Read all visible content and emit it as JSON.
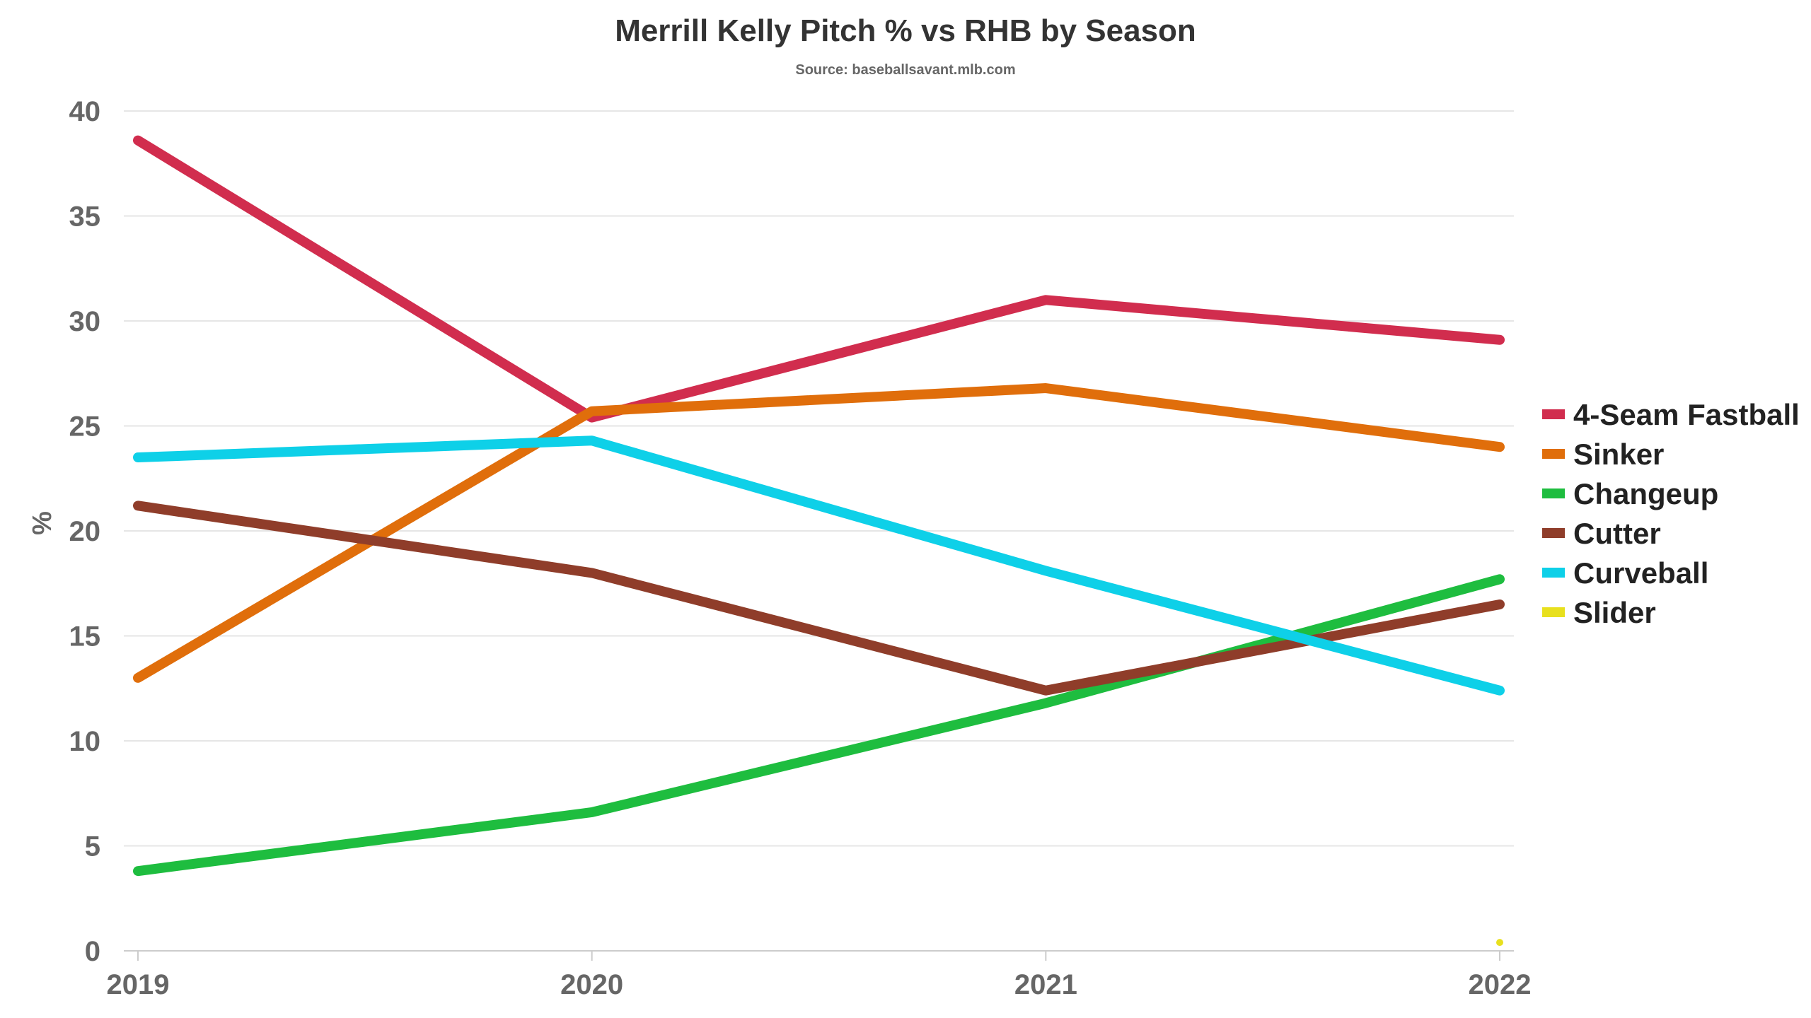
{
  "chart_data": {
    "type": "line",
    "title": "Merrill Kelly Pitch % vs RHB by Season",
    "subtitle": "Source: baseballsavant.mlb.com",
    "xlabel": "",
    "ylabel": "%",
    "categories": [
      "2019",
      "2020",
      "2021",
      "2022"
    ],
    "ylim": [
      0,
      40
    ],
    "yticks": [
      0,
      5,
      10,
      15,
      20,
      25,
      30,
      35,
      40
    ],
    "grid": true,
    "legend_position": "right",
    "series": [
      {
        "name": "4-Seam Fastball",
        "color": "#d12d4e",
        "values": [
          38.6,
          25.4,
          31.0,
          29.1
        ]
      },
      {
        "name": "Sinker",
        "color": "#e06e0b",
        "values": [
          13.0,
          25.7,
          26.8,
          24.0
        ]
      },
      {
        "name": "Changeup",
        "color": "#1ebd3f",
        "values": [
          3.8,
          6.6,
          11.8,
          17.7
        ]
      },
      {
        "name": "Cutter",
        "color": "#8f3d2a",
        "values": [
          21.2,
          18.0,
          12.4,
          16.5
        ]
      },
      {
        "name": "Curveball",
        "color": "#0ed0e8",
        "values": [
          23.5,
          24.3,
          18.1,
          12.4
        ]
      },
      {
        "name": "Slider",
        "color": "#e8e01e",
        "values": [
          null,
          null,
          null,
          0.4
        ]
      }
    ]
  }
}
